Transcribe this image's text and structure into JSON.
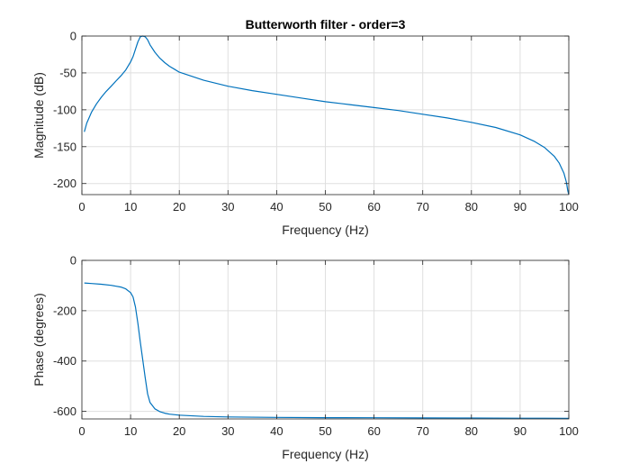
{
  "chart_data": [
    {
      "type": "line",
      "title": "Butterworth filter - order=3",
      "xlabel": "Frequency (Hz)",
      "ylabel": "Magnitude (dB)",
      "xlim": [
        0,
        100
      ],
      "ylim": [
        -215,
        0
      ],
      "xticks": [
        "0",
        "10",
        "20",
        "30",
        "40",
        "50",
        "60",
        "70",
        "80",
        "90",
        "100"
      ],
      "yticks": [
        "0",
        "-50",
        "-100",
        "-150",
        "-200"
      ],
      "grid": true,
      "line_color": "#0072BD",
      "series": [
        {
          "x": [
            0.5,
            1,
            2,
            3,
            4,
            5,
            6,
            7,
            8,
            9,
            10,
            10.5,
            11,
            11.5,
            12,
            12.5,
            13,
            13.5,
            14,
            15,
            16,
            17,
            18,
            19,
            20,
            25,
            30,
            35,
            40,
            45,
            50,
            55,
            60,
            65,
            70,
            75,
            80,
            85,
            90,
            93,
            95,
            97,
            98,
            99,
            99.5,
            99.8,
            100
          ],
          "y": [
            -130,
            -118,
            -103,
            -92,
            -83,
            -75,
            -68,
            -61,
            -54,
            -46,
            -35,
            -28,
            -18,
            -8,
            -1,
            0,
            -1,
            -5,
            -12,
            -22,
            -30,
            -36,
            -41,
            -45,
            -49,
            -60,
            -68,
            -74,
            -79,
            -84,
            -89,
            -93,
            -97,
            -101,
            -106,
            -111,
            -117,
            -124,
            -134,
            -143,
            -151,
            -163,
            -172,
            -186,
            -198,
            -210,
            -215
          ]
        }
      ]
    },
    {
      "type": "line",
      "xlabel": "Frequency (Hz)",
      "ylabel": "Phase (degrees)",
      "xlim": [
        0,
        100
      ],
      "ylim": [
        -630,
        0
      ],
      "xticks": [
        "0",
        "10",
        "20",
        "30",
        "40",
        "50",
        "60",
        "70",
        "80",
        "90",
        "100"
      ],
      "yticks": [
        "0",
        "-200",
        "-400",
        "-600"
      ],
      "grid": true,
      "line_color": "#0072BD",
      "series": [
        {
          "x": [
            0.5,
            2,
            4,
            6,
            8,
            9,
            10,
            10.5,
            11,
            11.5,
            12,
            12.5,
            13,
            13.5,
            14,
            15,
            16,
            17,
            18,
            20,
            25,
            30,
            40,
            50,
            60,
            70,
            80,
            90,
            95,
            100
          ],
          "y": [
            -90,
            -92,
            -95,
            -99,
            -106,
            -113,
            -128,
            -145,
            -185,
            -250,
            -325,
            -395,
            -465,
            -530,
            -565,
            -590,
            -601,
            -607,
            -611,
            -615,
            -620,
            -622,
            -624,
            -625,
            -625.5,
            -626,
            -626.5,
            -627,
            -627,
            -628
          ]
        }
      ]
    }
  ]
}
